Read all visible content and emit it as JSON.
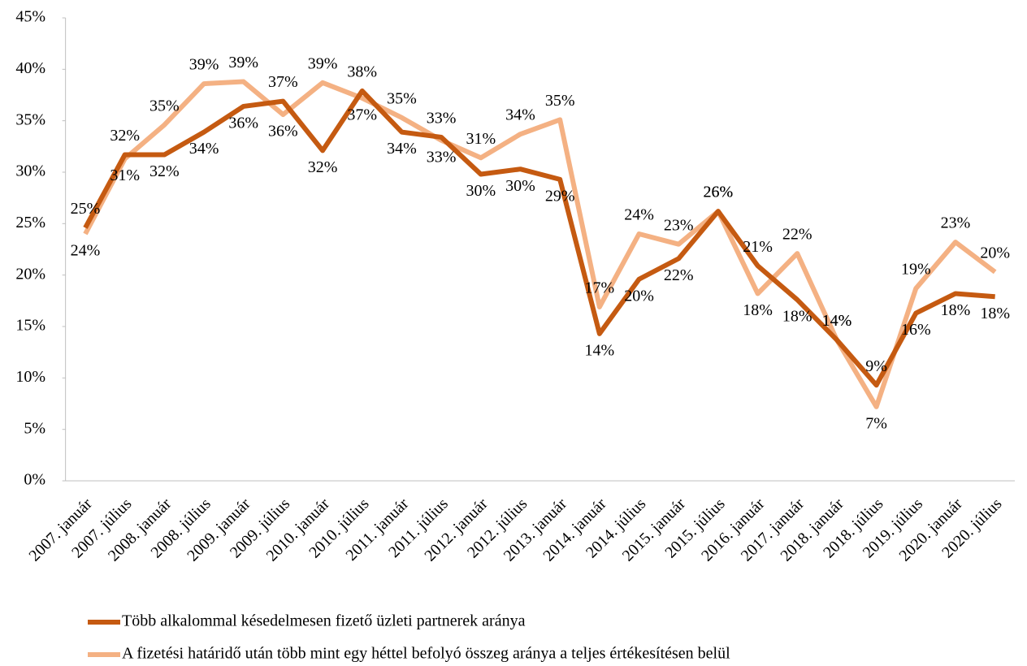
{
  "chart_data": {
    "type": "line",
    "categories": [
      "2007. január",
      "2007. július",
      "2008. január",
      "2008. július",
      "2009. január",
      "2009. július",
      "2010. január",
      "2010. július",
      "2011. január",
      "2011. július",
      "2012. január",
      "2012. július",
      "2013. január",
      "2014. január",
      "2014. július",
      "2015. január",
      "2015. július",
      "2016. január",
      "2017. január",
      "2018. január",
      "2018. július",
      "2019. július",
      "2020. január",
      "2020. július"
    ],
    "series": [
      {
        "name": "Több alkalommal késedelmesen fizető üzleti partnerek aránya",
        "color": "#c55a11",
        "values": [
          24.6,
          31.7,
          31.7,
          33.9,
          36.4,
          36.9,
          32.1,
          37.9,
          33.9,
          33.4,
          29.8,
          30.3,
          29.3,
          14.3,
          19.6,
          21.6,
          26.2,
          20.9,
          17.6,
          13.7,
          9.3,
          16.3,
          18.2,
          17.9
        ],
        "value_labels": [
          "25%",
          "32%",
          "32%",
          "34%",
          "36%",
          "37%",
          "32%",
          "38%",
          "34%",
          "33%",
          "30%",
          "30%",
          "29%",
          "14%",
          "20%",
          "22%",
          "26%",
          "21%",
          "18%",
          "14%",
          "9%",
          "16%",
          "18%",
          "18%"
        ]
      },
      {
        "name": "A fizetési határidő után több mint egy héttel befolyó összeg aránya a teljes értékesítésen belül",
        "color": "#f4b183",
        "values": [
          24.0,
          31.3,
          34.6,
          38.6,
          38.8,
          35.6,
          38.7,
          37.2,
          35.3,
          33.1,
          31.4,
          33.7,
          35.1,
          16.9,
          24.0,
          23.0,
          26.2,
          18.2,
          22.1,
          13.7,
          7.2,
          18.7,
          23.2,
          20.3
        ],
        "value_labels": [
          "24%",
          "31%",
          "35%",
          "39%",
          "39%",
          "36%",
          "39%",
          "37%",
          "35%",
          "33%",
          "31%",
          "34%",
          "35%",
          "17%",
          "24%",
          "23%",
          "26%",
          "18%",
          "22%",
          "14%",
          "7%",
          "19%",
          "23%",
          "20%"
        ]
      }
    ],
    "ylim": [
      0,
      45
    ],
    "yticks": [
      {
        "value": 0,
        "label": "0%"
      },
      {
        "value": 5,
        "label": "5%"
      },
      {
        "value": 10,
        "label": "10%"
      },
      {
        "value": 15,
        "label": "15%"
      },
      {
        "value": 20,
        "label": "20%"
      },
      {
        "value": 25,
        "label": "25%"
      },
      {
        "value": 30,
        "label": "30%"
      },
      {
        "value": 35,
        "label": "35%"
      },
      {
        "value": 40,
        "label": "40%"
      },
      {
        "value": 45,
        "label": "45%"
      }
    ],
    "grid": false,
    "legend": "bottom"
  }
}
